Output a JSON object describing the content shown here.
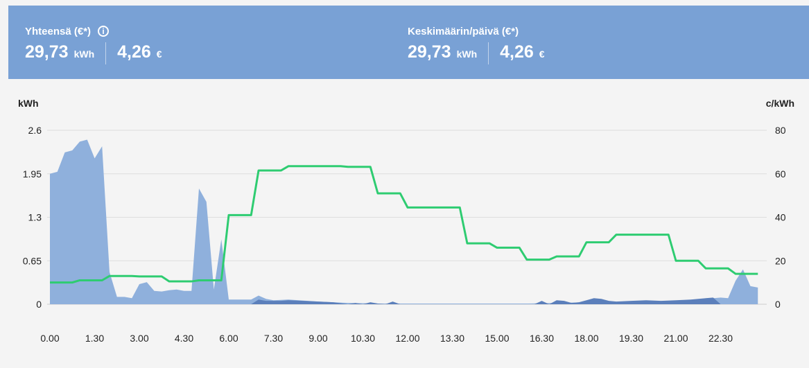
{
  "summary": {
    "total": {
      "label": "Yhteensä (€*)",
      "info_icon": "info-icon",
      "energy": "29,73",
      "energy_unit": "kWh",
      "cost": "4,26",
      "cost_unit": "€"
    },
    "average": {
      "label": "Keskimäärin/päivä (€*)",
      "energy": "29,73",
      "energy_unit": "kWh",
      "cost": "4,26",
      "cost_unit": "€"
    }
  },
  "colors": {
    "header_bg": "#79a1d5",
    "consumption_light": "#8fb0dc",
    "consumption_dark": "#5b7fbb",
    "price_line": "#2ecc71",
    "grid": "#dddddd"
  },
  "chart_data": {
    "type": "area",
    "left_axis_unit": "kWh",
    "right_axis_unit": "c/kWh",
    "left_ticks": [
      "0",
      "0.65",
      "1.3",
      "1.95",
      "2.6"
    ],
    "right_ticks": [
      "0",
      "20",
      "40",
      "60",
      "80"
    ],
    "x_tick_labels": [
      "0.00",
      "1.30",
      "3.00",
      "4.30",
      "6.00",
      "7.30",
      "9.00",
      "10.30",
      "12.00",
      "13.30",
      "15.00",
      "16.30",
      "18.00",
      "19.30",
      "21.00",
      "22.30"
    ],
    "ylim_left": [
      0,
      2.6
    ],
    "ylim_right": [
      0,
      80
    ],
    "xlim_hours": [
      0,
      24
    ],
    "series": [
      {
        "kind": "area",
        "color": "#8fb0dc",
        "points": [
          [
            0,
            1.95
          ],
          [
            0.25,
            1.98
          ],
          [
            0.5,
            2.27
          ],
          [
            0.75,
            2.3
          ],
          [
            1.0,
            2.43
          ],
          [
            1.25,
            2.46
          ],
          [
            1.5,
            2.18
          ],
          [
            1.75,
            2.36
          ],
          [
            2.0,
            0.48
          ],
          [
            2.25,
            0.11
          ],
          [
            2.5,
            0.11
          ],
          [
            2.75,
            0.09
          ],
          [
            3.0,
            0.3
          ],
          [
            3.25,
            0.33
          ],
          [
            3.5,
            0.2
          ],
          [
            3.75,
            0.19
          ],
          [
            4.0,
            0.21
          ],
          [
            4.25,
            0.22
          ],
          [
            4.5,
            0.2
          ],
          [
            4.75,
            0.2
          ],
          [
            5.0,
            1.73
          ],
          [
            5.25,
            1.53
          ],
          [
            5.5,
            0.22
          ],
          [
            5.75,
            0.97
          ],
          [
            6.0,
            0.07
          ],
          [
            6.5,
            0.07
          ],
          [
            6.75,
            0.07
          ],
          [
            7.0,
            0.13
          ],
          [
            7.25,
            0.08
          ],
          [
            7.5,
            0.06
          ],
          [
            8.0,
            0.07
          ],
          [
            9.0,
            0.04
          ],
          [
            10.0,
            0.02
          ],
          [
            11.0,
            0.01
          ],
          [
            12.0,
            0.01
          ],
          [
            14.0,
            0.01
          ],
          [
            16.0,
            0.01
          ],
          [
            17.0,
            0.02
          ],
          [
            18.0,
            0.03
          ],
          [
            20.0,
            0.04
          ],
          [
            21.0,
            0.05
          ],
          [
            22.0,
            0.08
          ],
          [
            22.5,
            0.1
          ],
          [
            22.75,
            0.09
          ],
          [
            23.0,
            0.35
          ],
          [
            23.25,
            0.52
          ],
          [
            23.5,
            0.27
          ],
          [
            23.75,
            0.25
          ]
        ]
      },
      {
        "kind": "area",
        "color": "#5b7fbb",
        "points": [
          [
            6.75,
            0.0
          ],
          [
            7.0,
            0.07
          ],
          [
            7.25,
            0.05
          ],
          [
            7.5,
            0.05
          ],
          [
            7.75,
            0.05
          ],
          [
            8.0,
            0.06
          ],
          [
            8.5,
            0.05
          ],
          [
            9.0,
            0.04
          ],
          [
            9.5,
            0.03
          ],
          [
            10.0,
            0.0
          ],
          [
            10.25,
            0.02
          ],
          [
            10.5,
            0.0
          ],
          [
            10.75,
            0.03
          ],
          [
            11.0,
            0.01
          ],
          [
            11.25,
            0.0
          ],
          [
            11.5,
            0.04
          ],
          [
            11.75,
            0.0
          ],
          [
            16.25,
            0.0
          ],
          [
            16.5,
            0.05
          ],
          [
            16.75,
            0.0
          ],
          [
            17.0,
            0.06
          ],
          [
            17.25,
            0.05
          ],
          [
            17.5,
            0.02
          ],
          [
            17.75,
            0.03
          ],
          [
            18.0,
            0.06
          ],
          [
            18.25,
            0.09
          ],
          [
            18.5,
            0.08
          ],
          [
            18.75,
            0.05
          ],
          [
            19.0,
            0.04
          ],
          [
            19.5,
            0.05
          ],
          [
            20.0,
            0.06
          ],
          [
            20.5,
            0.05
          ],
          [
            21.0,
            0.06
          ],
          [
            21.5,
            0.07
          ],
          [
            22.0,
            0.09
          ],
          [
            22.25,
            0.1
          ],
          [
            22.5,
            0.0
          ]
        ]
      },
      {
        "kind": "line",
        "color": "#2ecc71",
        "points": [
          [
            0,
            10
          ],
          [
            0.75,
            10
          ],
          [
            1.0,
            11
          ],
          [
            1.75,
            11
          ],
          [
            2.0,
            13
          ],
          [
            2.75,
            13
          ],
          [
            3.0,
            12.8
          ],
          [
            3.75,
            12.8
          ],
          [
            4.0,
            10.5
          ],
          [
            4.75,
            10.5
          ],
          [
            5.0,
            11
          ],
          [
            5.75,
            11
          ],
          [
            6.0,
            41
          ],
          [
            6.75,
            41
          ],
          [
            7.0,
            61.5
          ],
          [
            7.75,
            61.5
          ],
          [
            8.0,
            63.5
          ],
          [
            9.75,
            63.5
          ],
          [
            10.0,
            63.2
          ],
          [
            10.75,
            63.2
          ],
          [
            11.0,
            51
          ],
          [
            11.75,
            51
          ],
          [
            12.0,
            44.5
          ],
          [
            13.75,
            44.5
          ],
          [
            14.0,
            28
          ],
          [
            14.75,
            28
          ],
          [
            15.0,
            26
          ],
          [
            15.75,
            26
          ],
          [
            16.0,
            20.5
          ],
          [
            16.75,
            20.5
          ],
          [
            17.0,
            22
          ],
          [
            17.75,
            22
          ],
          [
            18.0,
            28.5
          ],
          [
            18.75,
            28.5
          ],
          [
            19.0,
            32
          ],
          [
            20.75,
            32
          ],
          [
            21.0,
            20
          ],
          [
            21.75,
            20
          ],
          [
            22.0,
            16.5
          ],
          [
            22.75,
            16.5
          ],
          [
            23.0,
            14
          ],
          [
            23.75,
            14
          ]
        ]
      }
    ]
  }
}
